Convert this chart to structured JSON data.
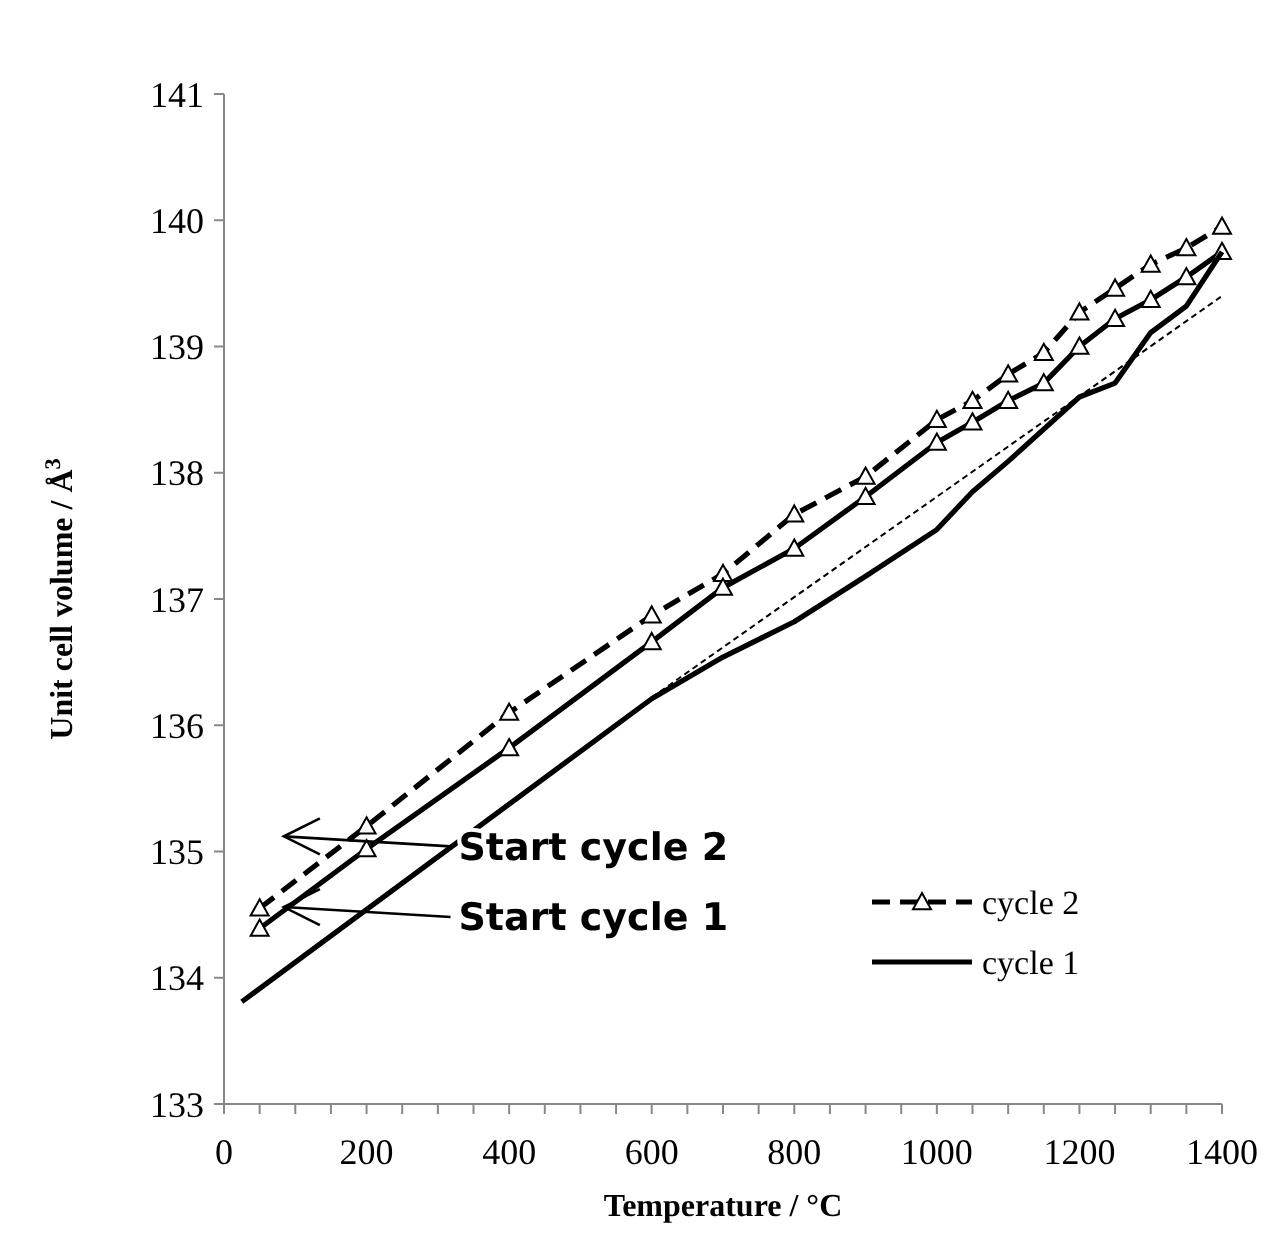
{
  "chart_data": {
    "type": "line",
    "xlabel": "Temperature / °C",
    "ylabel": "Unit cell volume / Å$^{3}$",
    "xlim": [
      0,
      1400
    ],
    "ylim": [
      133,
      141
    ],
    "xticks": [
      0,
      {
        "value": 50,
        "label": null
      },
      {
        "value": 100,
        "label": null
      },
      {
        "value": 150,
        "label": null
      },
      200,
      {
        "value": 250,
        "label": null
      },
      {
        "value": 300,
        "label": null
      },
      {
        "value": 350,
        "label": null
      },
      400,
      {
        "value": 450,
        "label": null
      },
      {
        "value": 500,
        "label": null
      },
      {
        "value": 550,
        "label": null
      },
      600,
      {
        "value": 650,
        "label": null
      },
      {
        "value": 700,
        "label": null
      },
      {
        "value": 750,
        "label": null
      },
      800,
      {
        "value": 850,
        "label": null
      },
      {
        "value": 900,
        "label": null
      },
      {
        "value": 950,
        "label": null
      },
      1000,
      {
        "value": 1050,
        "label": null
      },
      {
        "value": 1100,
        "label": null
      },
      {
        "value": 1150,
        "label": null
      },
      1200,
      {
        "value": 1250,
        "label": null
      },
      {
        "value": 1300,
        "label": null
      },
      {
        "value": 1350,
        "label": null
      },
      1400
    ],
    "yticks": [
      133,
      134,
      135,
      136,
      137,
      138,
      139,
      140,
      141
    ],
    "grid": false,
    "legend": "bottom right",
    "series": [
      {
        "name": "cycle 2",
        "color": "#000000",
        "line_style": "dashed",
        "marker": "triangle",
        "x": [
          50,
          200,
          400,
          600,
          700,
          800,
          900,
          1000,
          1050,
          1100,
          1150,
          1200,
          1250,
          1300,
          1350,
          1400
        ],
        "values": [
          134.55,
          135.2,
          136.1,
          136.87,
          137.2,
          137.67,
          137.97,
          138.42,
          138.57,
          138.78,
          138.95,
          139.27,
          139.46,
          139.65,
          139.78,
          139.95
        ]
      },
      {
        "color": "#000000",
        "line_style": "solid",
        "marker": "triangle",
        "x": [
          50,
          200,
          400,
          600,
          700,
          800,
          900,
          1000,
          1050,
          1100,
          1150,
          1200,
          1250,
          1300,
          1350,
          1400
        ],
        "values": [
          134.39,
          135.02,
          135.82,
          136.66,
          137.09,
          137.4,
          137.81,
          138.24,
          138.4,
          138.57,
          138.71,
          139.0,
          139.22,
          139.37,
          139.55,
          139.75
        ]
      },
      {
        "name": "cycle 1",
        "color": "#000000",
        "line_style": "solid",
        "marker": "none",
        "x": [
          25,
          600,
          700,
          800,
          900,
          1000,
          1050,
          1100,
          1200,
          1250,
          1300,
          1350,
          1400
        ],
        "values": [
          133.81,
          136.21,
          136.54,
          136.82,
          137.18,
          137.55,
          137.85,
          138.09,
          138.6,
          138.71,
          139.11,
          139.32,
          139.75
        ]
      },
      {
        "color": "#000000",
        "line_style": "dotted",
        "marker": "none",
        "x": [
          600,
          1400
        ],
        "values": [
          136.22,
          139.4
        ]
      }
    ],
    "annotations": [
      "Start cycle 2",
      "Start cycle 1"
    ]
  }
}
